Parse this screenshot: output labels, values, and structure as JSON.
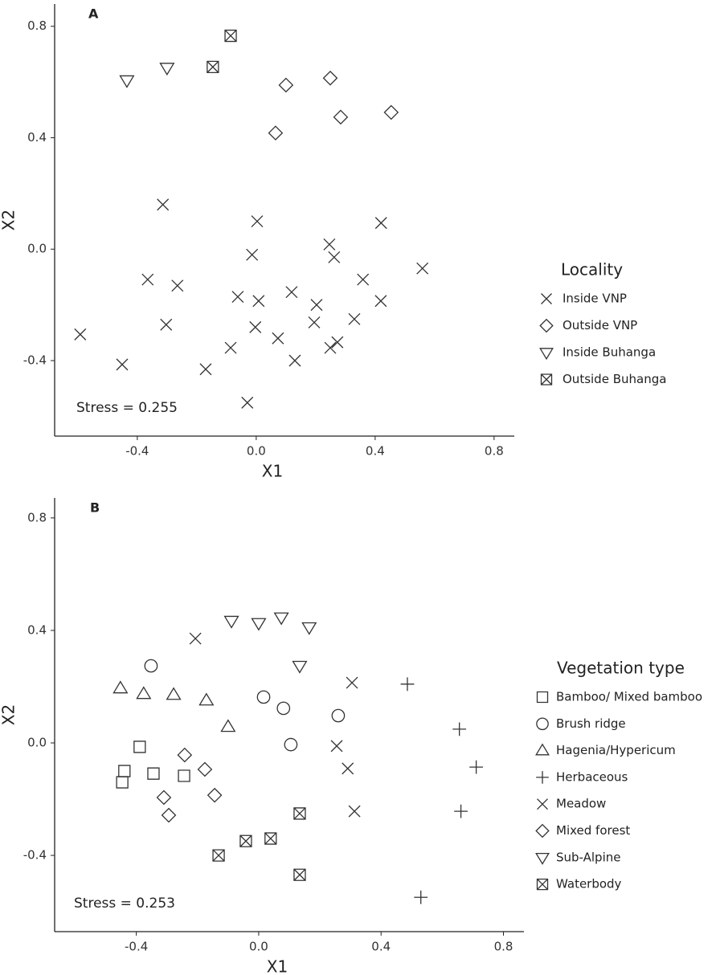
{
  "chart_data": [
    {
      "type": "scatter",
      "label": "A",
      "annotation": "Stress = 0.255",
      "xlabel": "X1",
      "ylabel": "X2",
      "legend_title": "Locality",
      "xlim": [
        -0.678,
        0.868
      ],
      "ylim": [
        -0.671,
        0.88
      ],
      "xticks": [
        -0.4,
        {
          "value": 0,
          "label": "0.0"
        },
        0.4,
        0.8
      ],
      "yticks": [
        -0.4,
        {
          "value": 0,
          "label": "0.0"
        },
        0.4,
        0.8
      ],
      "series": [
        {
          "name": "Inside VNP",
          "marker": "x",
          "color": "#333",
          "x": [
            -0.314,
            0.003,
            0.42,
            0.246,
            0.262,
            -0.014,
            0.559,
            -0.365,
            -0.265,
            0.359,
            0.119,
            -0.062,
            0.008,
            0.203,
            0.419,
            -0.592,
            -0.303,
            0.195,
            0.33,
            -0.003,
            0.073,
            -0.086,
            0.273,
            0.249,
            0.13,
            -0.451,
            -0.17,
            -0.03
          ],
          "values": [
            0.16,
            0.1,
            0.094,
            0.017,
            -0.029,
            -0.02,
            -0.069,
            -0.109,
            -0.131,
            -0.109,
            -0.154,
            -0.171,
            -0.186,
            -0.2,
            -0.186,
            -0.306,
            -0.271,
            -0.263,
            -0.251,
            -0.28,
            -0.32,
            -0.354,
            -0.334,
            -0.354,
            -0.4,
            -0.414,
            -0.431,
            -0.551
          ]
        },
        {
          "name": "Outside VNP",
          "marker": "diamond",
          "color": "#333",
          "x": [
            0.1,
            0.249,
            0.284,
            0.454,
            0.065
          ],
          "values": [
            0.589,
            0.614,
            0.474,
            0.491,
            0.417
          ]
        },
        {
          "name": "Inside Buhanga",
          "marker": "triangle-down",
          "color": "#333",
          "x": [
            -0.435,
            -0.3
          ],
          "values": [
            0.606,
            0.651
          ]
        },
        {
          "name": "Outside Buhanga",
          "marker": "square-x",
          "color": "#333",
          "x": [
            -0.086,
            -0.146
          ],
          "values": [
            0.766,
            0.654
          ]
        }
      ]
    },
    {
      "type": "scatter",
      "label": "B",
      "annotation": "Stress = 0.253",
      "xlabel": "X1",
      "ylabel": "X2",
      "legend_title": "Vegetation type",
      "xlim": [
        -0.667,
        0.867
      ],
      "ylim": [
        -0.671,
        0.871
      ],
      "xticks": [
        -0.4,
        {
          "value": 0,
          "label": "0.0"
        },
        0.4,
        0.8
      ],
      "yticks": [
        -0.4,
        {
          "value": 0,
          "label": "0.0"
        },
        0.4,
        0.8
      ],
      "series": [
        {
          "name": "Bamboo/ Mixed bamboo",
          "marker": "square",
          "color": "#333",
          "x": [
            -0.389,
            -0.439,
            -0.344,
            -0.244,
            -0.446
          ],
          "values": [
            -0.014,
            -0.1,
            -0.109,
            -0.117,
            -0.14
          ]
        },
        {
          "name": "Brush ridge",
          "marker": "circle",
          "color": "#333",
          "x": [
            -0.352,
            0.016,
            0.081,
            0.26,
            0.105
          ],
          "values": [
            0.274,
            0.163,
            0.123,
            0.097,
            -0.006
          ]
        },
        {
          "name": "Hagenia/Hypericum",
          "marker": "triangle-up",
          "color": "#333",
          "x": [
            -0.452,
            -0.376,
            -0.278,
            -0.171,
            -0.1
          ],
          "values": [
            0.194,
            0.174,
            0.171,
            0.151,
            0.057
          ]
        },
        {
          "name": "Herbaceous",
          "marker": "plus",
          "color": "#333",
          "x": [
            0.486,
            0.656,
            0.711,
            0.661,
            0.53
          ],
          "values": [
            0.209,
            0.049,
            -0.086,
            -0.243,
            -0.549
          ]
        },
        {
          "name": "Meadow",
          "marker": "x",
          "color": "#333",
          "x": [
            -0.207,
            0.305,
            0.255,
            0.291,
            0.313
          ],
          "values": [
            0.371,
            0.214,
            -0.011,
            -0.091,
            -0.243
          ]
        },
        {
          "name": "Mixed forest",
          "marker": "diamond",
          "color": "#333",
          "x": [
            -0.242,
            -0.176,
            -0.31,
            -0.144,
            -0.294
          ],
          "values": [
            -0.043,
            -0.094,
            -0.194,
            -0.186,
            -0.257
          ]
        },
        {
          "name": "Sub-Alpine",
          "marker": "triangle-down",
          "color": "#333",
          "x": [
            -0.089,
            0.0,
            0.074,
            0.165,
            0.134
          ],
          "values": [
            0.434,
            0.426,
            0.446,
            0.411,
            0.274
          ]
        },
        {
          "name": "Waterbody",
          "marker": "square-x",
          "color": "#333",
          "x": [
            0.134,
            -0.042,
            0.039,
            -0.131,
            0.134
          ],
          "values": [
            -0.251,
            -0.349,
            -0.34,
            -0.4,
            -0.469
          ]
        }
      ]
    }
  ]
}
